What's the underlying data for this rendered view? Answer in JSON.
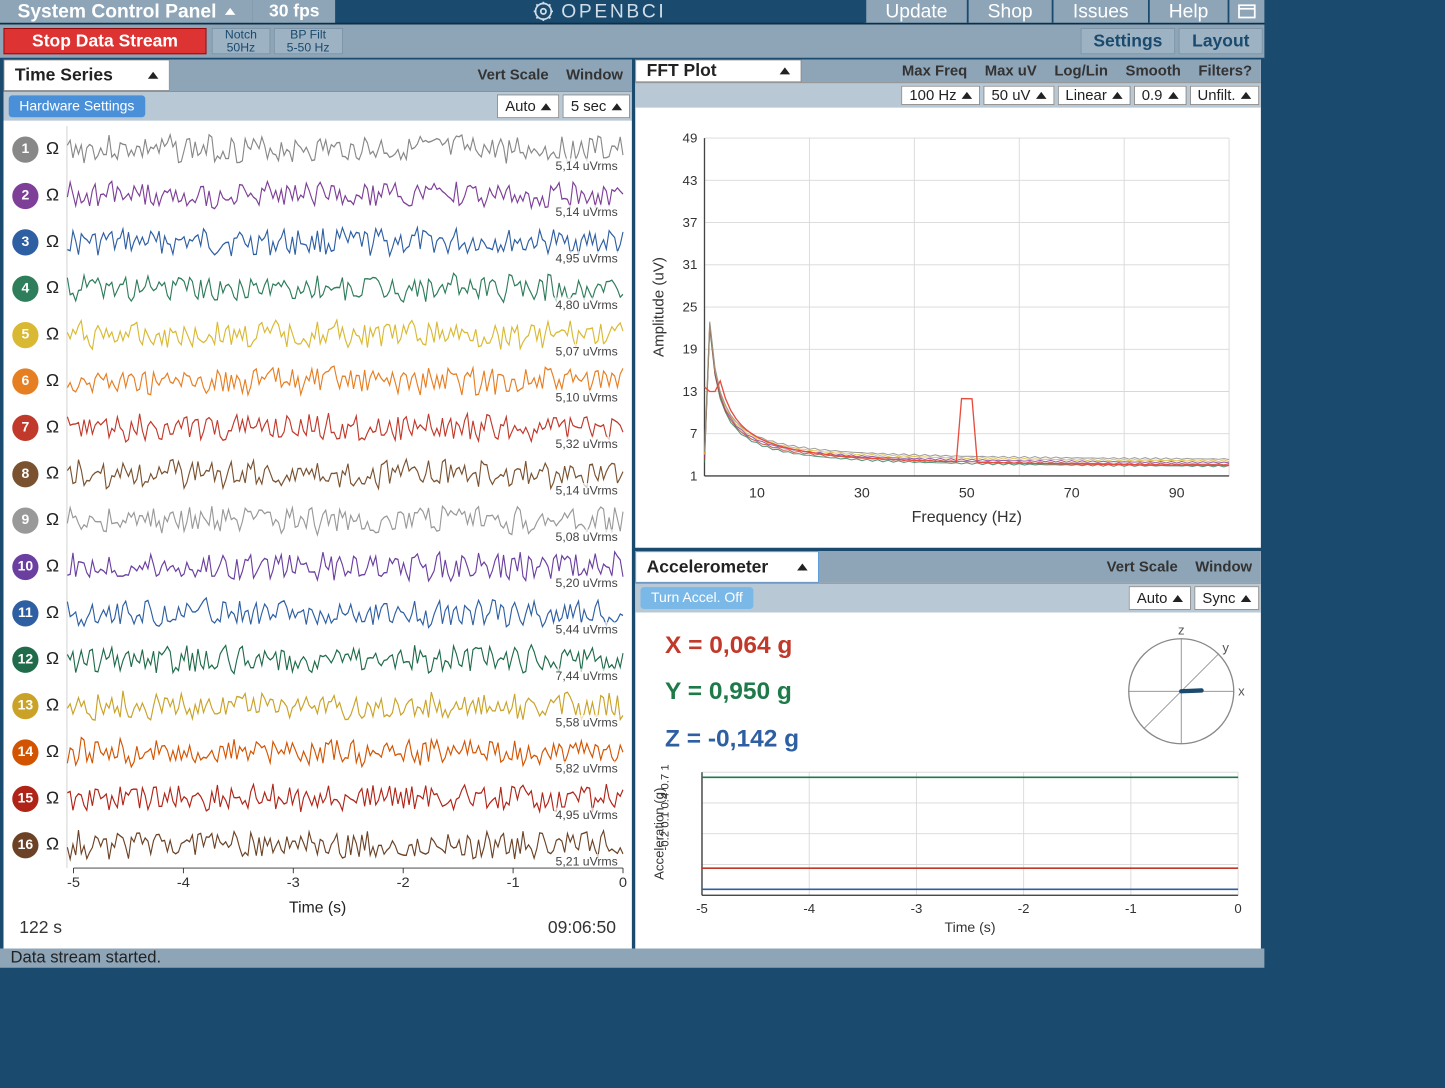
{
  "topbar": {
    "system_panel": "System Control Panel",
    "fps": "30 fps",
    "logo_text": "OPENBCI",
    "menu": [
      "Update",
      "Shop",
      "Issues",
      "Help"
    ]
  },
  "filterbar": {
    "stop_label": "Stop Data Stream",
    "notch": {
      "l1": "Notch",
      "l2": "50Hz"
    },
    "bpfilt": {
      "l1": "BP Filt",
      "l2": "5-50 Hz"
    },
    "settings": "Settings",
    "layout": "Layout"
  },
  "timeseries": {
    "title": "Time Series",
    "hw_settings": "Hardware Settings",
    "vert_scale_label": "Vert Scale",
    "vert_scale_value": "Auto",
    "window_label": "Window",
    "window_value": "5 sec",
    "x_axis_label": "Time (s)",
    "x_ticks": [
      "-5",
      "-4",
      "-3",
      "-2",
      "-1",
      "0"
    ],
    "elapsed": "122 s",
    "clock": "09:06:50",
    "channels": [
      {
        "n": "1",
        "color": "#888888",
        "rms": "5,14 uVrms"
      },
      {
        "n": "2",
        "color": "#7e3f98",
        "rms": "5,14 uVrms"
      },
      {
        "n": "3",
        "color": "#2e5fa3",
        "rms": "4,95 uVrms"
      },
      {
        "n": "4",
        "color": "#2e7d5b",
        "rms": "4,80 uVrms"
      },
      {
        "n": "5",
        "color": "#d9b933",
        "rms": "5,07 uVrms"
      },
      {
        "n": "6",
        "color": "#e67e22",
        "rms": "5,10 uVrms"
      },
      {
        "n": "7",
        "color": "#c0392b",
        "rms": "5,32 uVrms"
      },
      {
        "n": "8",
        "color": "#7a5230",
        "rms": "5,14 uVrms"
      },
      {
        "n": "9",
        "color": "#999999",
        "rms": "5,08 uVrms"
      },
      {
        "n": "10",
        "color": "#6b3fa0",
        "rms": "5,20 uVrms"
      },
      {
        "n": "11",
        "color": "#2e5fa3",
        "rms": "5,44 uVrms"
      },
      {
        "n": "12",
        "color": "#1f6b4a",
        "rms": "7,44 uVrms"
      },
      {
        "n": "13",
        "color": "#c9a227",
        "rms": "5,58 uVrms"
      },
      {
        "n": "14",
        "color": "#d35400",
        "rms": "5,82 uVrms"
      },
      {
        "n": "15",
        "color": "#b02418",
        "rms": "4,95 uVrms"
      },
      {
        "n": "16",
        "color": "#6b4226",
        "rms": "5,21 uVrms"
      }
    ]
  },
  "fft": {
    "title": "FFT Plot",
    "labels": [
      "Max Freq",
      "Max uV",
      "Log/Lin",
      "Smooth",
      "Filters?"
    ],
    "values": [
      "100 Hz",
      "50 uV",
      "Linear",
      "0.9",
      "Unfilt."
    ],
    "y_label": "Amplitude (uV)",
    "x_label": "Frequency (Hz)",
    "y_ticks": [
      "1",
      "7",
      "13",
      "19",
      "25",
      "31",
      "37",
      "43",
      "49"
    ],
    "x_ticks": [
      "10",
      "30",
      "50",
      "70",
      "90"
    ],
    "peak_color": "#e74c3c",
    "base_colors": [
      "#2e7d5b",
      "#c0392b",
      "#7e3f98",
      "#d9b933",
      "#888888"
    ],
    "grid_color": "#d8d8d8",
    "axis_color": "#444"
  },
  "accel": {
    "title": "Accelerometer",
    "turn_off": "Turn Accel. Off",
    "vert_scale_label": "Vert Scale",
    "vert_scale_value": "Auto",
    "window_label": "Window",
    "window_value": "Sync",
    "x": {
      "label": "X = 0,064 g",
      "color": "#c0392b",
      "value": 0.064
    },
    "y": {
      "label": "Y = 0,950 g",
      "color": "#1f7a4a",
      "value": 0.95
    },
    "z": {
      "label": "Z = -0,142 g",
      "color": "#2e5fa3",
      "value": -0.142
    },
    "axes_labels": {
      "x": "x",
      "y": "y",
      "z": "z"
    },
    "chart": {
      "y_label": "Acceleration (g)",
      "x_label": "Time (s)",
      "y_ticks": [
        "-0.2",
        "0.1",
        "0.4",
        "0.7",
        "1"
      ],
      "x_ticks": [
        "-5",
        "-4",
        "-3",
        "-2",
        "-1",
        "0"
      ],
      "grid_color": "#d8d8d8"
    }
  },
  "status": "Data stream started."
}
